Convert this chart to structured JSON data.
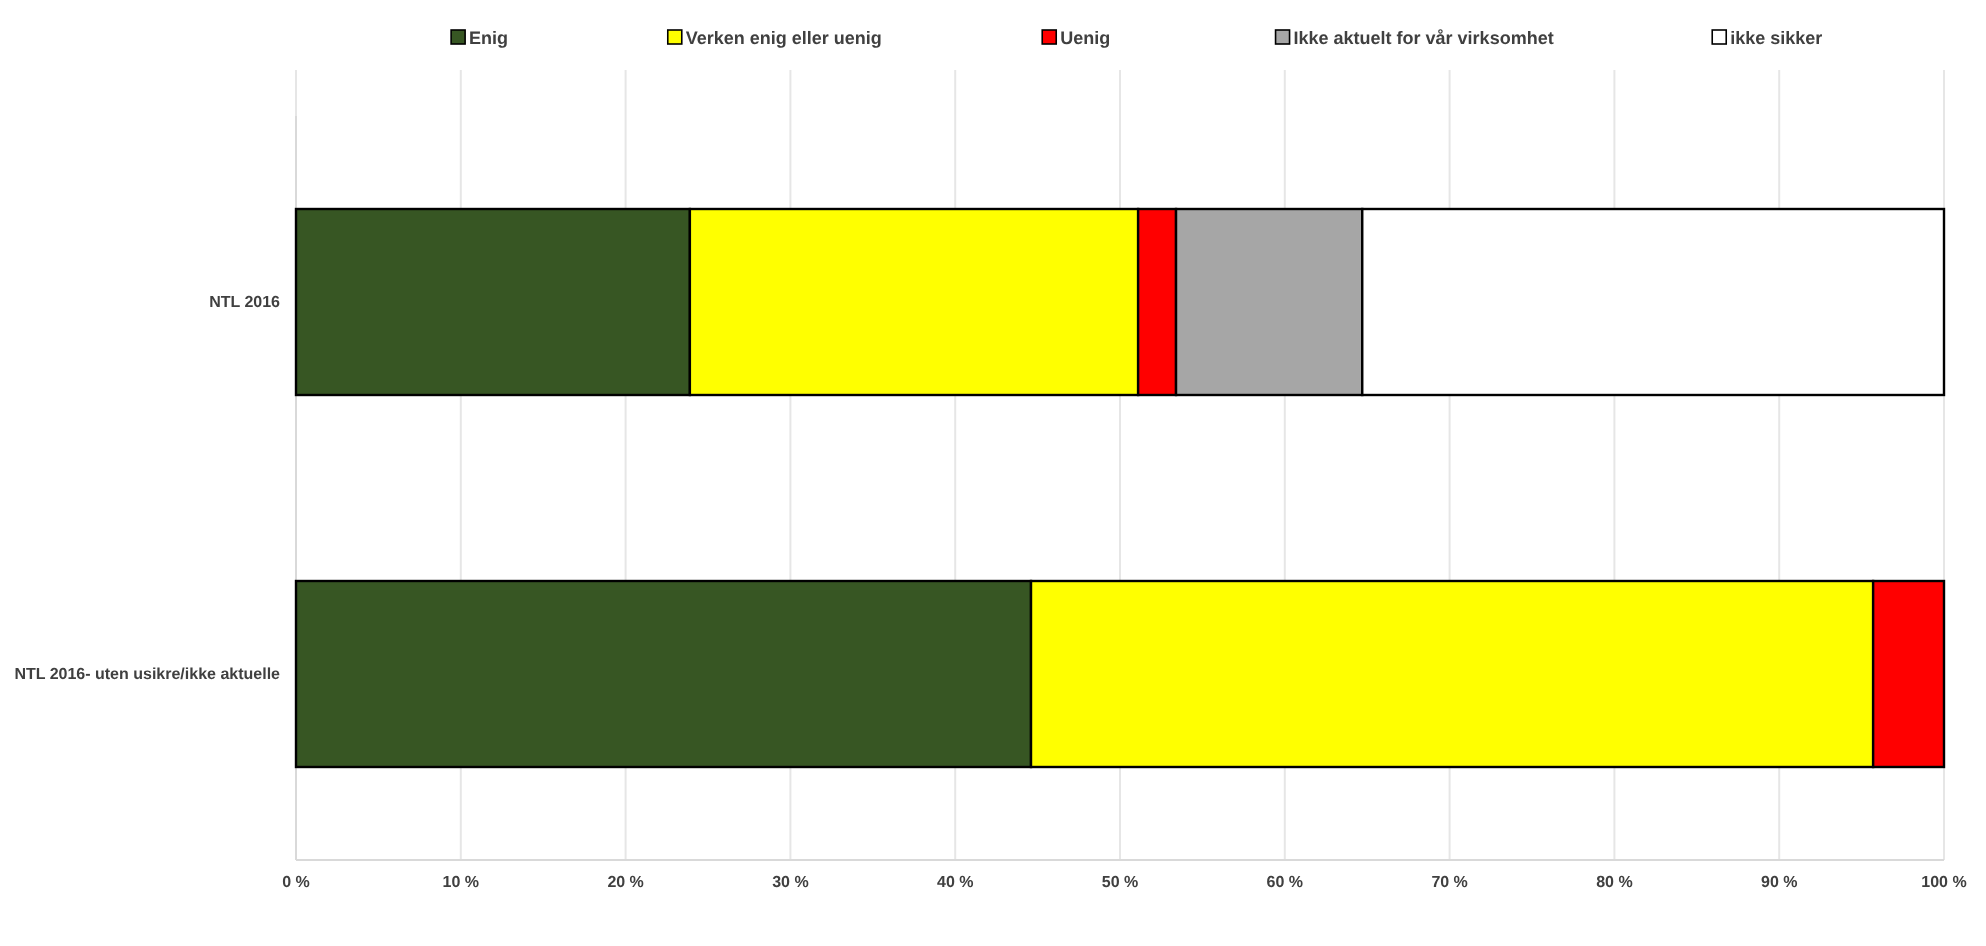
{
  "chart_data": {
    "type": "bar",
    "orientation": "horizontal",
    "stacked": true,
    "categories": [
      "NTL 2016",
      "NTL 2016- uten usikre/ikke aktuelle"
    ],
    "series": [
      {
        "name": "Enig",
        "color": "#375623",
        "values": [
          23.9,
          44.6
        ]
      },
      {
        "name": "Verken enig eller uenig",
        "color": "#ffff00",
        "values": [
          27.2,
          51.1
        ]
      },
      {
        "name": "Uenig",
        "color": "#ff0000",
        "values": [
          2.3,
          4.3
        ]
      },
      {
        "name": "Ikke aktuelt for vår virksomhet",
        "color": "#a6a6a6",
        "values": [
          11.3,
          0
        ]
      },
      {
        "name": "ikke sikker",
        "color": "#ffffff",
        "values": [
          35.3,
          0
        ]
      }
    ],
    "xlim": [
      0,
      100
    ],
    "xticks": [
      {
        "value": 0,
        "label": "0 %"
      },
      {
        "value": 10,
        "label": "10 %"
      },
      {
        "value": 20,
        "label": "20 %"
      },
      {
        "value": 30,
        "label": "30 %"
      },
      {
        "value": 40,
        "label": "40 %"
      },
      {
        "value": 50,
        "label": "50 %"
      },
      {
        "value": 60,
        "label": "60 %"
      },
      {
        "value": 70,
        "label": "70 %"
      },
      {
        "value": 80,
        "label": "80 %"
      },
      {
        "value": 90,
        "label": "90 %"
      },
      {
        "value": 100,
        "label": "100 %"
      }
    ],
    "grid": "x",
    "legend": "top"
  }
}
